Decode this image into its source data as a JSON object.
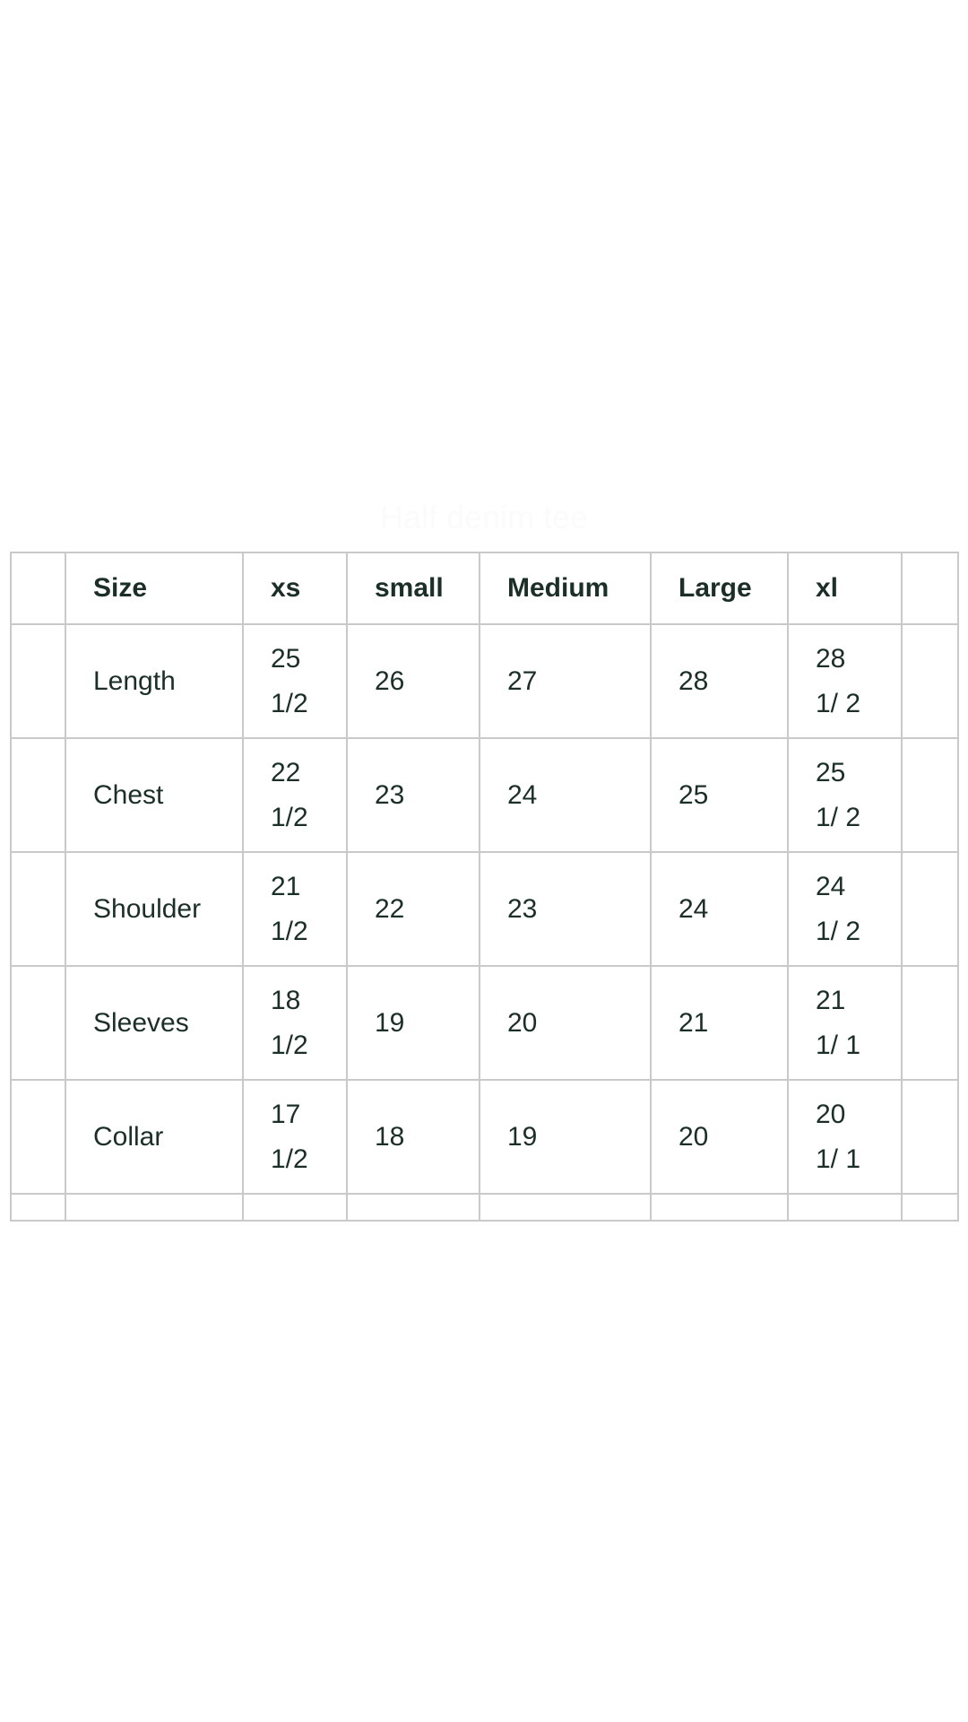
{
  "title": "Half denim tee",
  "table": {
    "headers": [
      "Size",
      "xs",
      "small",
      "Medium",
      "Large",
      "xl"
    ],
    "rows": [
      {
        "label": "Length",
        "values": [
          "25 1/2",
          "26",
          "27",
          "28",
          "28 1/ 2"
        ]
      },
      {
        "label": "Chest",
        "values": [
          "22 1/2",
          "23",
          "24",
          "25",
          "25 1/ 2"
        ]
      },
      {
        "label": "Shoulder",
        "values": [
          "21 1/2",
          "22",
          "23",
          "24",
          "24 1/ 2"
        ]
      },
      {
        "label": "Sleeves",
        "values": [
          "18 1/2",
          "19",
          "20",
          "21",
          "21 1/ 1"
        ]
      },
      {
        "label": "Collar",
        "values": [
          "17 1/2",
          "18",
          "19",
          "20",
          "20 1/ 1"
        ]
      }
    ]
  }
}
